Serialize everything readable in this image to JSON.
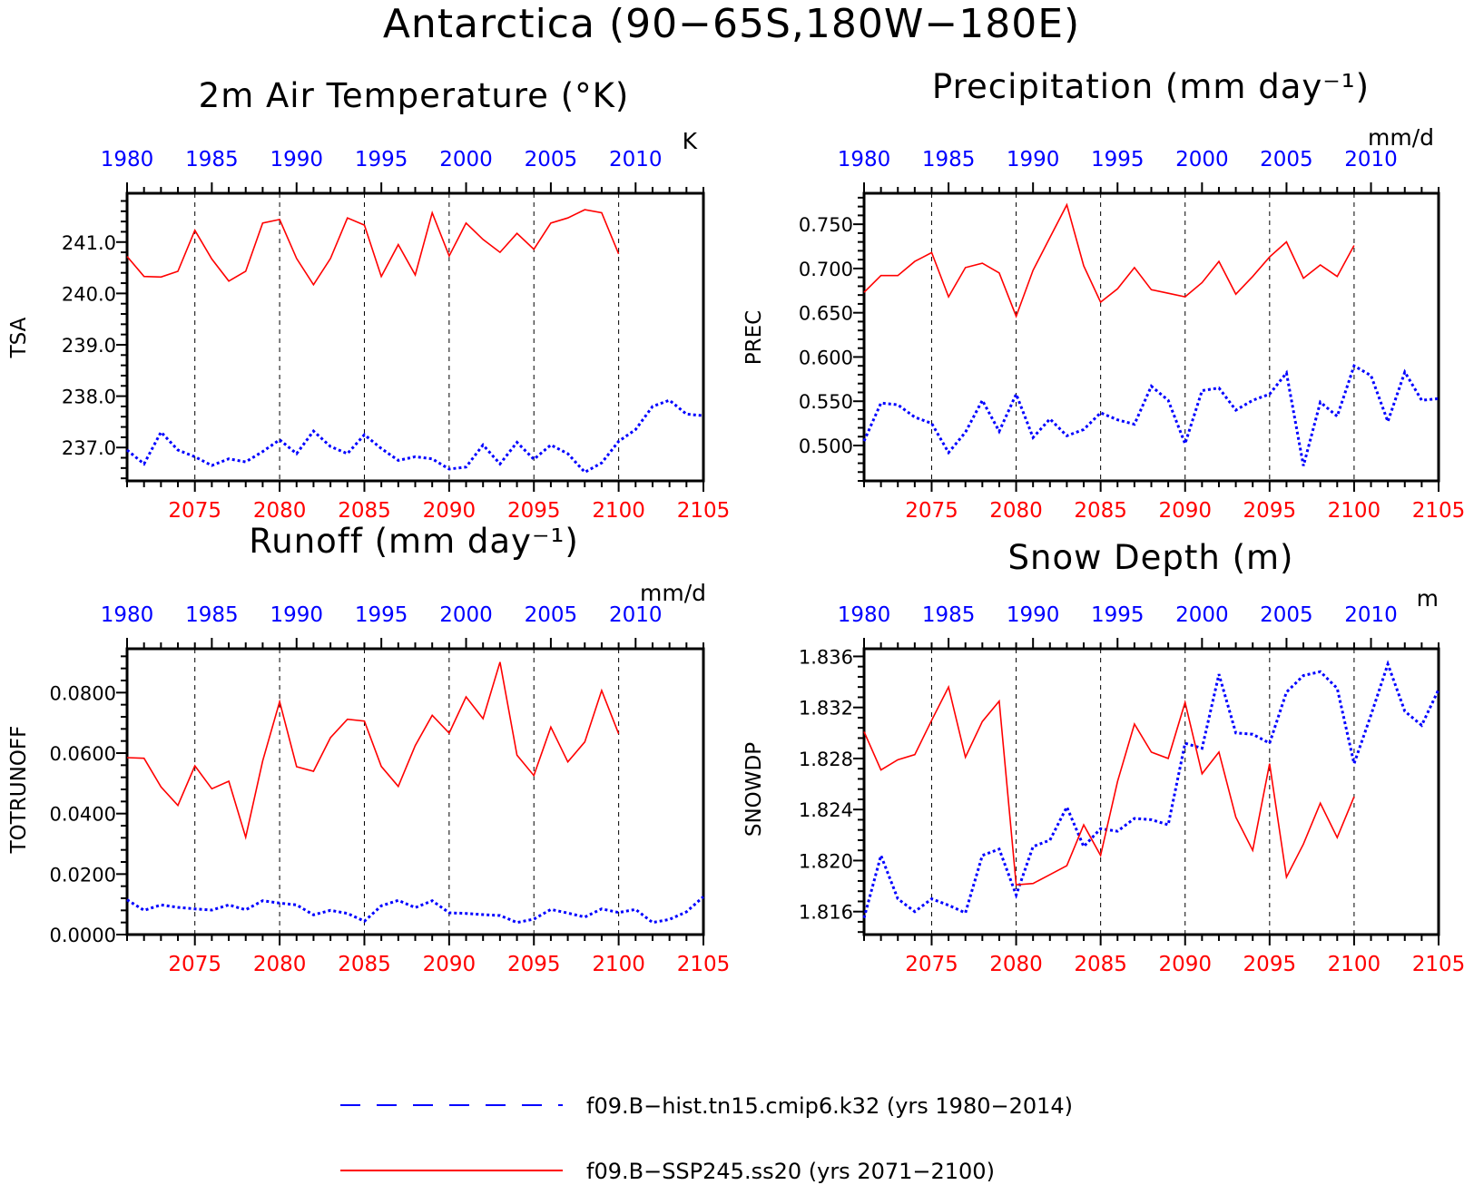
{
  "title": "Antarctica (90−65S,180W−180E)",
  "colors": {
    "historical": "#0000ff",
    "future": "#ff0000",
    "axis": "#000000"
  },
  "legend": [
    {
      "label": "f09.B−hist.tn15.cmip6.k32 (yrs 1980−2014)",
      "color": "#0000ff",
      "style": "dashed"
    },
    {
      "label": "f09.B−SSP245.ss20 (yrs 2071−2100)",
      "color": "#ff0000",
      "style": "solid"
    }
  ],
  "chart_data": [
    {
      "type": "line",
      "title": "2m Air Temperature (°K)",
      "unit": "K",
      "ylabel": "TSA",
      "ylim": [
        236.35,
        241.95
      ],
      "yticks": [
        237.0,
        238.0,
        239.0,
        240.0,
        241.0
      ],
      "ytick_labels": [
        "237.0",
        "238.0",
        "239.0",
        "240.0",
        "241.0"
      ],
      "top_axis": {
        "range": [
          1980,
          2014
        ],
        "ticks": [
          1980,
          1985,
          1990,
          1995,
          2000,
          2005,
          2010
        ]
      },
      "bottom_axis": {
        "range": [
          2071,
          2105
        ],
        "ticks": [
          2075,
          2080,
          2085,
          2090,
          2095,
          2100,
          2105
        ]
      },
      "vlines": [
        2075,
        2080,
        2085,
        2090,
        2095,
        2100
      ],
      "series": [
        {
          "name": "f09.B−hist.tn15.cmip6.k32 (yrs 1980−2014)",
          "axis": "top",
          "x": [
            1980,
            1981,
            1982,
            1983,
            1984,
            1985,
            1986,
            1987,
            1988,
            1989,
            1990,
            1991,
            1992,
            1993,
            1994,
            1995,
            1996,
            1997,
            1998,
            1999,
            2000,
            2001,
            2002,
            2003,
            2004,
            2005,
            2006,
            2007,
            2008,
            2009,
            2010,
            2011,
            2012,
            2013,
            2014
          ],
          "values": [
            236.95,
            236.68,
            237.3,
            236.95,
            236.82,
            236.65,
            236.78,
            236.72,
            236.92,
            237.15,
            236.88,
            237.32,
            237.02,
            236.88,
            237.25,
            236.98,
            236.75,
            236.82,
            236.78,
            236.58,
            236.62,
            237.05,
            236.68,
            237.1,
            236.77,
            237.05,
            236.88,
            236.52,
            236.7,
            237.12,
            237.35,
            237.8,
            237.92,
            237.65,
            237.62
          ]
        },
        {
          "name": "f09.B−SSP245.ss20 (yrs 2071−2100)",
          "axis": "bottom",
          "x": [
            2071,
            2072,
            2073,
            2074,
            2075,
            2076,
            2077,
            2078,
            2079,
            2080,
            2081,
            2082,
            2083,
            2084,
            2085,
            2086,
            2087,
            2088,
            2089,
            2090,
            2091,
            2092,
            2093,
            2094,
            2095,
            2096,
            2097,
            2098,
            2099,
            2100
          ],
          "values": [
            240.72,
            240.33,
            240.32,
            240.43,
            241.23,
            240.67,
            240.24,
            240.43,
            241.37,
            241.44,
            240.68,
            240.17,
            240.68,
            241.47,
            241.33,
            240.33,
            240.95,
            240.36,
            241.57,
            240.73,
            241.37,
            241.05,
            240.8,
            241.17,
            240.86,
            241.37,
            241.47,
            241.63,
            241.57,
            240.77
          ]
        }
      ]
    },
    {
      "type": "line",
      "title": "Precipitation (mm day⁻¹)",
      "unit": "mm/d",
      "ylabel": "PREC",
      "ylim": [
        0.46,
        0.785
      ],
      "yticks": [
        0.5,
        0.55,
        0.6,
        0.65,
        0.7,
        0.75
      ],
      "ytick_labels": [
        "0.500",
        "0.550",
        "0.600",
        "0.650",
        "0.700",
        "0.750"
      ],
      "top_axis": {
        "range": [
          1980,
          2014
        ],
        "ticks": [
          1980,
          1985,
          1990,
          1995,
          2000,
          2005,
          2010
        ]
      },
      "bottom_axis": {
        "range": [
          2071,
          2105
        ],
        "ticks": [
          2075,
          2080,
          2085,
          2090,
          2095,
          2100,
          2105
        ]
      },
      "vlines": [
        2075,
        2080,
        2085,
        2090,
        2095,
        2100
      ],
      "series": [
        {
          "name": "f09.B−hist.tn15.cmip6.k32 (yrs 1980−2014)",
          "axis": "top",
          "x": [
            1980,
            1981,
            1982,
            1983,
            1984,
            1985,
            1986,
            1987,
            1988,
            1989,
            1990,
            1991,
            1992,
            1993,
            1994,
            1995,
            1996,
            1997,
            1998,
            1999,
            2000,
            2001,
            2002,
            2003,
            2004,
            2005,
            2006,
            2007,
            2008,
            2009,
            2010,
            2011,
            2012,
            2013,
            2014
          ],
          "values": [
            0.505,
            0.548,
            0.546,
            0.532,
            0.525,
            0.492,
            0.515,
            0.551,
            0.516,
            0.558,
            0.509,
            0.53,
            0.511,
            0.518,
            0.537,
            0.529,
            0.524,
            0.567,
            0.551,
            0.502,
            0.562,
            0.565,
            0.54,
            0.551,
            0.558,
            0.582,
            0.477,
            0.549,
            0.533,
            0.59,
            0.579,
            0.527,
            0.583,
            0.551,
            0.553
          ]
        },
        {
          "name": "f09.B−SSP245.ss20 (yrs 2071−2100)",
          "axis": "bottom",
          "x": [
            2071,
            2072,
            2073,
            2074,
            2075,
            2076,
            2077,
            2078,
            2079,
            2080,
            2081,
            2082,
            2083,
            2084,
            2085,
            2086,
            2087,
            2088,
            2089,
            2090,
            2091,
            2092,
            2093,
            2094,
            2095,
            2096,
            2097,
            2098,
            2099,
            2100
          ],
          "values": [
            0.673,
            0.692,
            0.692,
            0.708,
            0.718,
            0.668,
            0.701,
            0.706,
            0.695,
            0.646,
            0.698,
            0.735,
            0.772,
            0.703,
            0.662,
            0.677,
            0.701,
            0.676,
            0.672,
            0.668,
            0.684,
            0.708,
            0.671,
            0.691,
            0.713,
            0.73,
            0.689,
            0.704,
            0.691,
            0.726
          ]
        }
      ]
    },
    {
      "type": "line",
      "title": "Runoff (mm day⁻¹)",
      "unit": "mm/d",
      "ylabel": "TOTRUNOFF",
      "ylim": [
        0.0,
        0.0945
      ],
      "yticks": [
        0.0,
        0.02,
        0.04,
        0.06,
        0.08
      ],
      "ytick_labels": [
        "0.0000",
        "0.0200",
        "0.0400",
        "0.0600",
        "0.0800"
      ],
      "top_axis": {
        "range": [
          1980,
          2014
        ],
        "ticks": [
          1980,
          1985,
          1990,
          1995,
          2000,
          2005,
          2010
        ]
      },
      "bottom_axis": {
        "range": [
          2071,
          2105
        ],
        "ticks": [
          2075,
          2080,
          2085,
          2090,
          2095,
          2100,
          2105
        ]
      },
      "vlines": [
        2075,
        2080,
        2085,
        2090,
        2095,
        2100
      ],
      "series": [
        {
          "name": "f09.B−hist.tn15.cmip6.k32 (yrs 1980−2014)",
          "axis": "top",
          "x": [
            1980,
            1981,
            1982,
            1983,
            1984,
            1985,
            1986,
            1987,
            1988,
            1989,
            1990,
            1991,
            1992,
            1993,
            1994,
            1995,
            1996,
            1997,
            1998,
            1999,
            2000,
            2001,
            2002,
            2003,
            2004,
            2005,
            2006,
            2007,
            2008,
            2009,
            2010,
            2011,
            2012,
            2013,
            2014
          ],
          "values": [
            0.0115,
            0.008,
            0.0098,
            0.009,
            0.0085,
            0.0081,
            0.0098,
            0.0082,
            0.0112,
            0.0104,
            0.0098,
            0.0065,
            0.008,
            0.007,
            0.0044,
            0.0095,
            0.0113,
            0.0089,
            0.0112,
            0.0072,
            0.007,
            0.0066,
            0.0063,
            0.004,
            0.0051,
            0.0083,
            0.0071,
            0.0058,
            0.0085,
            0.0073,
            0.0083,
            0.004,
            0.005,
            0.0075,
            0.0125
          ]
        },
        {
          "name": "f09.B−SSP245.ss20 (yrs 2071−2100)",
          "axis": "bottom",
          "x": [
            2071,
            2072,
            2073,
            2074,
            2075,
            2076,
            2077,
            2078,
            2079,
            2080,
            2081,
            2082,
            2083,
            2084,
            2085,
            2086,
            2087,
            2088,
            2089,
            2090,
            2091,
            2092,
            2093,
            2094,
            2095,
            2096,
            2097,
            2098,
            2099,
            2100
          ],
          "values": [
            0.0585,
            0.0583,
            0.0488,
            0.0427,
            0.0558,
            0.0482,
            0.0507,
            0.0322,
            0.0574,
            0.077,
            0.0555,
            0.054,
            0.0651,
            0.0712,
            0.0706,
            0.0556,
            0.049,
            0.0625,
            0.0725,
            0.0666,
            0.0786,
            0.0714,
            0.0901,
            0.0593,
            0.0526,
            0.0686,
            0.0571,
            0.0637,
            0.0807,
            0.0664
          ]
        }
      ]
    },
    {
      "type": "line",
      "title": "Snow Depth (m)",
      "unit": "m",
      "ylabel": "SNOWDP",
      "ylim": [
        1.8142,
        1.8366
      ],
      "yticks": [
        1.816,
        1.82,
        1.824,
        1.828,
        1.832,
        1.836
      ],
      "ytick_labels": [
        "1.816",
        "1.820",
        "1.824",
        "1.828",
        "1.832",
        "1.836"
      ],
      "top_axis": {
        "range": [
          1980,
          2014
        ],
        "ticks": [
          1980,
          1985,
          1990,
          1995,
          2000,
          2005,
          2010
        ]
      },
      "bottom_axis": {
        "range": [
          2071,
          2105
        ],
        "ticks": [
          2075,
          2080,
          2085,
          2090,
          2095,
          2100,
          2105
        ]
      },
      "vlines": [
        2075,
        2080,
        2085,
        2090,
        2095,
        2100
      ],
      "series": [
        {
          "name": "f09.B−hist.tn15.cmip6.k32 (yrs 1980−2014)",
          "axis": "top",
          "x": [
            1980,
            1981,
            1982,
            1983,
            1984,
            1985,
            1986,
            1987,
            1988,
            1989,
            1990,
            1991,
            1992,
            1993,
            1994,
            1995,
            1996,
            1997,
            1998,
            1999,
            2000,
            2001,
            2002,
            2003,
            2004,
            2005,
            2006,
            2007,
            2008,
            2009,
            2010,
            2011,
            2012,
            2013,
            2014
          ],
          "values": [
            1.8155,
            1.8204,
            1.817,
            1.816,
            1.817,
            1.8165,
            1.8159,
            1.8204,
            1.8209,
            1.8173,
            1.8211,
            1.8216,
            1.8242,
            1.8211,
            1.8225,
            1.8223,
            1.8233,
            1.8232,
            1.8228,
            1.8292,
            1.8288,
            1.8346,
            1.83,
            1.8299,
            1.8292,
            1.8332,
            1.8345,
            1.8348,
            1.8335,
            1.8276,
            1.8314,
            1.8354,
            1.8317,
            1.8306,
            1.8334
          ]
        },
        {
          "name": "f09.B−SSP245.ss20 (yrs 2071−2100)",
          "axis": "bottom",
          "x": [
            2071,
            2072,
            2073,
            2074,
            2075,
            2076,
            2077,
            2078,
            2079,
            2080,
            2081,
            2082,
            2083,
            2084,
            2085,
            2086,
            2087,
            2088,
            2089,
            2090,
            2091,
            2092,
            2093,
            2094,
            2095,
            2096,
            2097,
            2098,
            2099,
            2100
          ],
          "values": [
            1.8301,
            1.8271,
            1.8279,
            1.8283,
            1.831,
            1.8336,
            1.8281,
            1.8309,
            1.8325,
            1.8181,
            1.8182,
            1.8189,
            1.8196,
            1.8228,
            1.8204,
            1.8262,
            1.8307,
            1.8285,
            1.828,
            1.8324,
            1.8268,
            1.8285,
            1.8234,
            1.8208,
            1.8276,
            1.8187,
            1.8213,
            1.8245,
            1.8218,
            1.825
          ]
        }
      ]
    }
  ]
}
